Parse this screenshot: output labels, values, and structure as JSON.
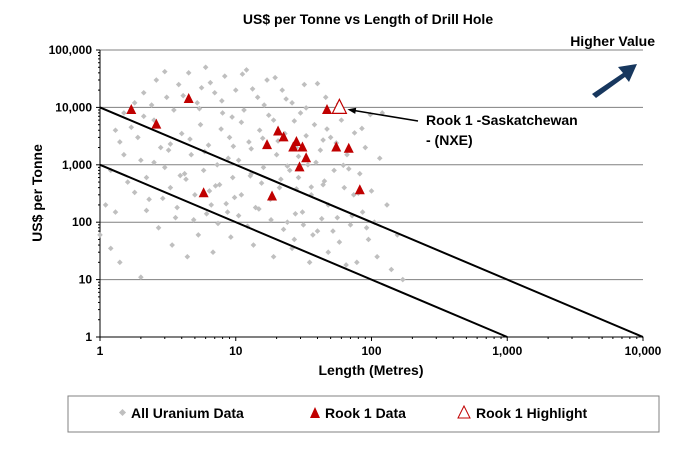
{
  "chart_data": {
    "type": "scatter",
    "title": "US$ per Tonne vs Length of Drill Hole",
    "xlabel": "Length (Metres)",
    "ylabel": "US$ per Tonne",
    "x_scale": "log",
    "y_scale": "log",
    "xlim": [
      1,
      10000
    ],
    "ylim": [
      1,
      100000
    ],
    "x_ticks": [
      1,
      10,
      100,
      1000,
      10000
    ],
    "x_tick_labels": [
      "1",
      "10",
      "100",
      "1,000",
      "10,000"
    ],
    "y_ticks": [
      1,
      10,
      100,
      1000,
      10000,
      100000
    ],
    "y_tick_labels": [
      "1",
      "10",
      "100",
      "1,000",
      "10,000",
      "100,000"
    ],
    "grid": "horizontal",
    "legend_position": "bottom",
    "colors": {
      "all_uranium": "#bfbfbf",
      "rook1": "#c00000",
      "highlight_edge": "#c00000",
      "arrow": "#17375e",
      "gridline": "#808080",
      "boundary_line": "#000000"
    },
    "annotations": {
      "higher_value": "Higher Value",
      "callout_line1": "Rook 1 -Saskatchewan",
      "callout_line2": "- (NXE)",
      "callout_target": [
        58,
        10000
      ]
    },
    "reference_lines": [
      {
        "x": [
          1,
          10000
        ],
        "y": [
          10000,
          1
        ]
      },
      {
        "x": [
          1,
          1000
        ],
        "y": [
          1000,
          1
        ]
      }
    ],
    "series": [
      {
        "name": "All Uranium Data",
        "marker": "diamond",
        "color": "#bfbfbf",
        "points": [
          [
            1.2,
            800
          ],
          [
            1.3,
            150
          ],
          [
            1.4,
            2500
          ],
          [
            1.5,
            8000
          ],
          [
            1.6,
            500
          ],
          [
            1.8,
            12000
          ],
          [
            1.9,
            3000
          ],
          [
            2.0,
            1200
          ],
          [
            2.1,
            18000
          ],
          [
            2.2,
            600
          ],
          [
            2.3,
            250
          ],
          [
            2.5,
            6000
          ],
          [
            2.6,
            30000
          ],
          [
            2.8,
            2000
          ],
          [
            3.0,
            900
          ],
          [
            3.1,
            15000
          ],
          [
            3.3,
            400
          ],
          [
            3.5,
            9000
          ],
          [
            3.6,
            120
          ],
          [
            3.8,
            25000
          ],
          [
            4.0,
            3500
          ],
          [
            4.2,
            700
          ],
          [
            4.5,
            40000
          ],
          [
            4.7,
            1500
          ],
          [
            5.0,
            300
          ],
          [
            5.2,
            12000
          ],
          [
            5.5,
            5000
          ],
          [
            5.8,
            800
          ],
          [
            6.0,
            50000
          ],
          [
            6.3,
            2200
          ],
          [
            6.6,
            200
          ],
          [
            7.0,
            18000
          ],
          [
            7.3,
            1000
          ],
          [
            7.6,
            450
          ],
          [
            8.0,
            8000
          ],
          [
            8.3,
            35000
          ],
          [
            8.7,
            150
          ],
          [
            9.0,
            3000
          ],
          [
            9.5,
            600
          ],
          [
            10,
            20000
          ],
          [
            10.5,
            1200
          ],
          [
            11,
            300
          ],
          [
            11.5,
            9000
          ],
          [
            12,
            45000
          ],
          [
            12.5,
            2500
          ],
          [
            13,
            700
          ],
          [
            14,
            180
          ],
          [
            14.5,
            15000
          ],
          [
            15,
            4000
          ],
          [
            16,
            900
          ],
          [
            17,
            30000
          ],
          [
            18,
            250
          ],
          [
            19,
            6000
          ],
          [
            20,
            1500
          ],
          [
            21,
            400
          ],
          [
            22,
            20000
          ],
          [
            23,
            3500
          ],
          [
            24,
            100
          ],
          [
            25,
            800
          ],
          [
            26,
            12000
          ],
          [
            27,
            50
          ],
          [
            28,
            2000
          ],
          [
            29,
            600
          ],
          [
            30,
            8000
          ],
          [
            31,
            150
          ],
          [
            32,
            25000
          ],
          [
            34,
            1000
          ],
          [
            36,
            300
          ],
          [
            38,
            5000
          ],
          [
            40,
            70
          ],
          [
            42,
            1800
          ],
          [
            44,
            450
          ],
          [
            46,
            15000
          ],
          [
            48,
            200
          ],
          [
            50,
            3000
          ],
          [
            53,
            800
          ],
          [
            56,
            120
          ],
          [
            60,
            6000
          ],
          [
            63,
            400
          ],
          [
            66,
            1500
          ],
          [
            70,
            90
          ],
          [
            74,
            300
          ],
          [
            78,
            20
          ],
          [
            82,
            700
          ],
          [
            86,
            150
          ],
          [
            90,
            2000
          ],
          [
            95,
            50
          ],
          [
            100,
            350
          ],
          [
            105,
            100
          ],
          [
            110,
            25
          ],
          [
            120,
            8000
          ],
          [
            130,
            200
          ],
          [
            140,
            15
          ],
          [
            155,
            60
          ],
          [
            170,
            10
          ],
          [
            2.0,
            11
          ],
          [
            1.0,
            60
          ],
          [
            1.1,
            200
          ],
          [
            1.2,
            35
          ],
          [
            1.4,
            20
          ],
          [
            2.7,
            80
          ],
          [
            3.4,
            40
          ],
          [
            4.4,
            25
          ],
          [
            5.3,
            60
          ],
          [
            6.8,
            30
          ],
          [
            9.2,
            55
          ],
          [
            13.5,
            40
          ],
          [
            19,
            25
          ],
          [
            26,
            35
          ],
          [
            35,
            20
          ],
          [
            48,
            30
          ],
          [
            65,
            18
          ],
          [
            1.5,
            1500
          ],
          [
            1.7,
            4500
          ],
          [
            2.4,
            11000
          ],
          [
            3.2,
            1800
          ],
          [
            3.9,
            650
          ],
          [
            4.6,
            2800
          ],
          [
            5.6,
            22000
          ],
          [
            6.4,
            350
          ],
          [
            7.8,
            4200
          ],
          [
            8.8,
            1300
          ],
          [
            9.8,
            270
          ],
          [
            11,
            5500
          ],
          [
            13,
            1900
          ],
          [
            15.5,
            480
          ],
          [
            17.5,
            7300
          ],
          [
            20.5,
            2600
          ],
          [
            24,
            950
          ],
          [
            28,
            380
          ],
          [
            33,
            3200
          ],
          [
            39,
            1100
          ],
          [
            45,
            520
          ],
          [
            55,
            2400
          ],
          [
            68,
            850
          ],
          [
            80,
            320
          ],
          [
            2.2,
            160
          ],
          [
            2.9,
            260
          ],
          [
            3.7,
            180
          ],
          [
            4.9,
            110
          ],
          [
            6.1,
            140
          ],
          [
            7.4,
            95
          ],
          [
            8.5,
            210
          ],
          [
            10.5,
            130
          ],
          [
            12.2,
            85
          ],
          [
            14.8,
            170
          ],
          [
            18.2,
            110
          ],
          [
            22.5,
            75
          ],
          [
            27.5,
            140
          ],
          [
            31.5,
            90
          ],
          [
            37,
            60
          ],
          [
            43,
            115
          ],
          [
            52,
            70
          ],
          [
            58,
            45
          ],
          [
            72,
            130
          ],
          [
            92,
            80
          ],
          [
            1.3,
            4000
          ],
          [
            2.1,
            7000
          ],
          [
            3.0,
            42000
          ],
          [
            4.1,
            16000
          ],
          [
            5.4,
            9500
          ],
          [
            6.5,
            27000
          ],
          [
            7.9,
            13000
          ],
          [
            9.4,
            6800
          ],
          [
            11.2,
            38000
          ],
          [
            13.3,
            21000
          ],
          [
            16.2,
            11000
          ],
          [
            19.5,
            33000
          ],
          [
            23.5,
            14000
          ],
          [
            27,
            5800
          ],
          [
            33,
            9800
          ],
          [
            40,
            26000
          ],
          [
            47,
            4200
          ],
          [
            57,
            11500
          ],
          [
            75,
            3600
          ],
          [
            98,
            7500
          ],
          [
            1.8,
            330
          ],
          [
            2.5,
            1100
          ],
          [
            3.3,
            2300
          ],
          [
            4.3,
            560
          ],
          [
            5.9,
            1700
          ],
          [
            7.1,
            430
          ],
          [
            9.6,
            2100
          ],
          [
            12.8,
            640
          ],
          [
            15.8,
            2900
          ],
          [
            21.5,
            560
          ],
          [
            29,
            1400
          ],
          [
            36,
            410
          ],
          [
            44,
            2700
          ],
          [
            62,
            980
          ],
          [
            85,
            4300
          ],
          [
            115,
            1300
          ]
        ]
      },
      {
        "name": "Rook 1 Data",
        "marker": "triangle",
        "color": "#c00000",
        "points": [
          [
            1.7,
            9000
          ],
          [
            2.6,
            5000
          ],
          [
            4.5,
            14000
          ],
          [
            5.8,
            320
          ],
          [
            17,
            2200
          ],
          [
            18.5,
            280
          ],
          [
            20.5,
            3800
          ],
          [
            22.5,
            3000
          ],
          [
            26.5,
            2000
          ],
          [
            28,
            2500
          ],
          [
            29.5,
            900
          ],
          [
            31,
            2000
          ],
          [
            33,
            1300
          ],
          [
            47,
            9000
          ],
          [
            55,
            2000
          ],
          [
            68,
            1900
          ],
          [
            82,
            360
          ]
        ]
      },
      {
        "name": "Rook 1 Highlight",
        "marker": "triangle-open",
        "color": "#c00000",
        "points": [
          [
            58,
            10000
          ]
        ]
      }
    ]
  }
}
